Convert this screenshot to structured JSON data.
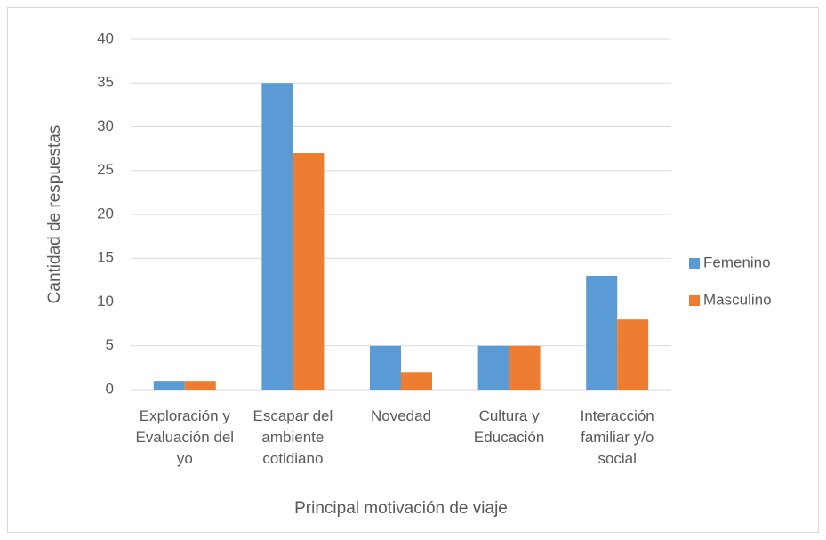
{
  "chart_data": {
    "type": "bar",
    "x_label": "Principal motivación de viaje",
    "y_label": "Cantidad de respuestas",
    "categories": [
      "Exploración y Evaluación del yo",
      "Escapar del ambiente cotidiano",
      "Novedad",
      "Cultura y Educación",
      "Interacción familiar y/o social"
    ],
    "series": [
      {
        "name": "Femenino",
        "color": "#5b9bd5",
        "values": [
          1,
          35,
          5,
          5,
          13
        ]
      },
      {
        "name": "Masculino",
        "color": "#ed7d31",
        "values": [
          1,
          27,
          2,
          5,
          8
        ]
      }
    ],
    "ylim": [
      0,
      40
    ],
    "yticks": [
      0,
      5,
      10,
      15,
      20,
      25,
      30,
      35,
      40
    ],
    "grid": true,
    "legend": "right"
  }
}
